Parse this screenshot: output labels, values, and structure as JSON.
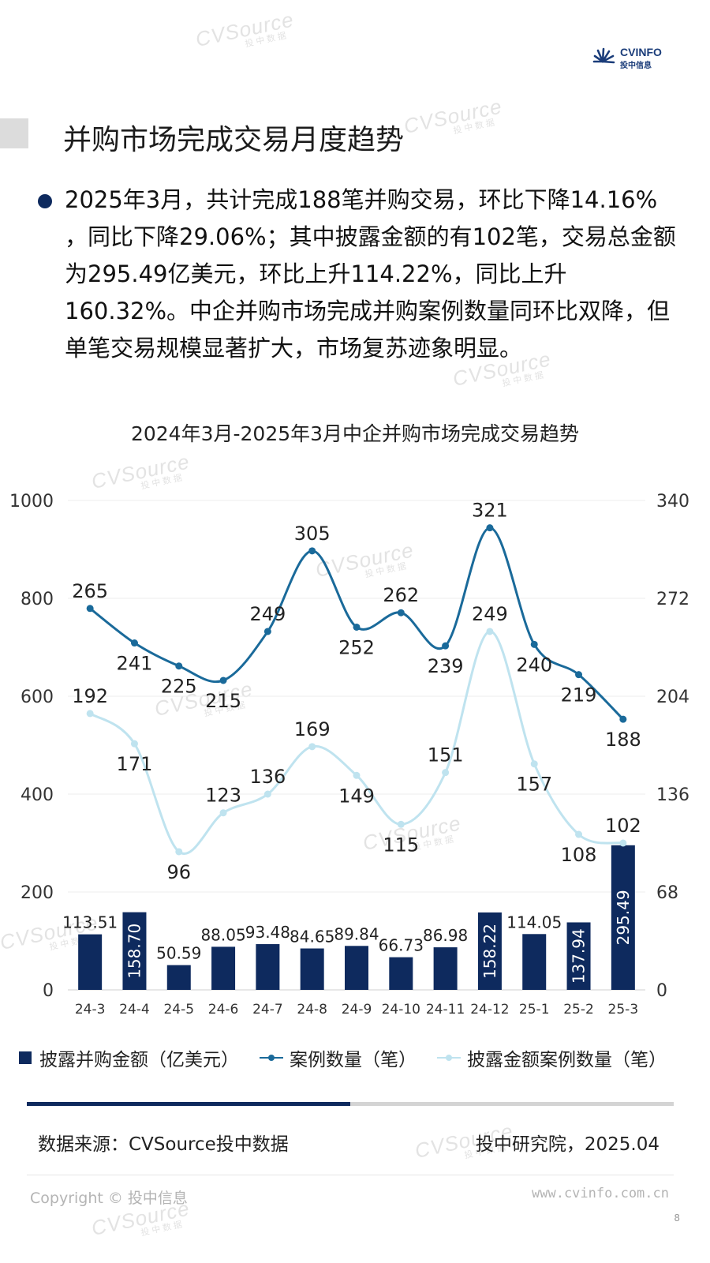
{
  "watermark": {
    "text": "CVSource",
    "sub": "投中数据"
  },
  "logo": {
    "brand": "CVINFO",
    "cn": "投中信息"
  },
  "header": {
    "title": "并购市场完成交易月度趋势"
  },
  "summary": {
    "text": "2025年3月，共计完成188笔并购交易，环比下降14.16% ，同比下降29.06%；其中披露金额的有102笔，交易总金额为295.49亿美元，环比上升114.22%，同比上升160.32%。中企并购市场完成并购案例数量同环比双降，但单笔交易规模显著扩大，市场复苏迹象明显。"
  },
  "chart_data": {
    "type": "bar",
    "title": "2024年3月-2025年3月中企并购市场完成交易趋势",
    "categories": [
      "24-3",
      "24-4",
      "24-5",
      "24-6",
      "24-7",
      "24-8",
      "24-9",
      "24-10",
      "24-11",
      "24-12",
      "25-1",
      "25-2",
      "25-3"
    ],
    "series": [
      {
        "name": "披露并购金额（亿美元）",
        "type": "bar",
        "axis": "left",
        "values": [
          113.51,
          158.7,
          50.59,
          88.05,
          93.48,
          84.65,
          89.84,
          66.73,
          86.98,
          158.22,
          114.05,
          137.94,
          295.49
        ],
        "labels": [
          "113.51",
          "158.70",
          "50.59",
          "88.05",
          "93.48",
          "84.65",
          "89.84",
          "66.73",
          "86.98",
          "158.22",
          "114.05",
          "137.94",
          "295.49"
        ],
        "color": "#0e2a5e"
      },
      {
        "name": "案例数量（笔）",
        "type": "line",
        "axis": "right",
        "values": [
          265,
          241,
          225,
          215,
          249,
          305,
          252,
          262,
          239,
          321,
          240,
          219,
          188
        ],
        "color": "#1a6a9a"
      },
      {
        "name": "披露金额案例数量（笔）",
        "type": "line",
        "axis": "right",
        "values": [
          192,
          171,
          96,
          123,
          136,
          169,
          149,
          115,
          151,
          249,
          157,
          108,
          102
        ],
        "color": "#bfe3ef"
      }
    ],
    "y_left": {
      "min": 0,
      "max": 1000,
      "ticks": [
        0,
        200,
        400,
        600,
        800,
        1000
      ]
    },
    "y_right": {
      "min": 0,
      "max": 340,
      "ticks": [
        0,
        68,
        136,
        204,
        272,
        340
      ]
    },
    "grid": true,
    "legend_position": "bottom"
  },
  "legend": [
    "披露并购金额（亿美元）",
    "案例数量（笔）",
    "披露金额案例数量（笔）"
  ],
  "footer": {
    "source": "数据来源：CVSource投中数据",
    "institute": "投中研究院，2025.04",
    "copyright": "Copyright © 投中信息",
    "website": "www.cvinfo.com.cn",
    "page": "8"
  }
}
